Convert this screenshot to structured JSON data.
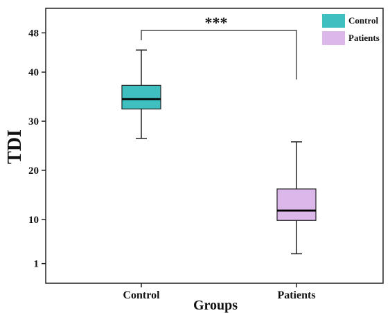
{
  "chart_data": {
    "type": "box",
    "xlabel": "Groups",
    "ylabel": "TDI",
    "ylim": [
      -3,
      53
    ],
    "y_ticks": [
      1,
      10,
      20,
      30,
      40,
      48
    ],
    "categories": [
      "Control",
      "Patients"
    ],
    "series": [
      {
        "name": "Control",
        "color": "#3fbfbf",
        "min": 26.5,
        "q1": 32.5,
        "median": 34.5,
        "q3": 37.3,
        "max": 44.5
      },
      {
        "name": "Patients",
        "color": "#dcb8ea",
        "min": 3,
        "q1": 9.8,
        "median": 11.8,
        "q3": 16.2,
        "max": 25.8
      }
    ],
    "significance": {
      "label": "***",
      "bracket_y": 48.5,
      "left_drop_to": 46.5,
      "right_drop_to": 38.5
    },
    "legend": {
      "position": "top-right",
      "entries": [
        "Control",
        "Patients"
      ]
    }
  }
}
